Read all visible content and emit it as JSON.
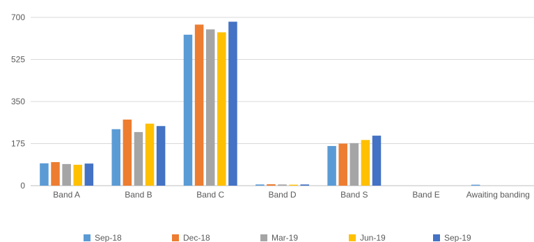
{
  "chart_data": {
    "type": "bar",
    "title": "",
    "xlabel": "",
    "ylabel": "",
    "ylim": [
      0,
      700
    ],
    "yticks": [
      0,
      175,
      350,
      525,
      700
    ],
    "grid": true,
    "legend_position": "bottom",
    "categories": [
      "Band A",
      "Band B",
      "Band C",
      "Band D",
      "Band S",
      "Band E",
      "Awaiting banding"
    ],
    "series": [
      {
        "name": "Sep-18",
        "color": "#5b9bd5",
        "values": [
          93,
          235,
          628,
          5,
          165,
          0,
          4
        ]
      },
      {
        "name": "Dec-18",
        "color": "#ed7d31",
        "values": [
          98,
          275,
          670,
          6,
          175,
          0,
          0
        ]
      },
      {
        "name": "Mar-19",
        "color": "#a5a5a5",
        "values": [
          90,
          223,
          650,
          5,
          177,
          0,
          0
        ]
      },
      {
        "name": "Jun-19",
        "color": "#ffc000",
        "values": [
          87,
          258,
          638,
          4,
          190,
          0,
          0
        ]
      },
      {
        "name": "Sep-19",
        "color": "#4472c4",
        "values": [
          92,
          248,
          682,
          5,
          208,
          0,
          0
        ]
      }
    ]
  }
}
